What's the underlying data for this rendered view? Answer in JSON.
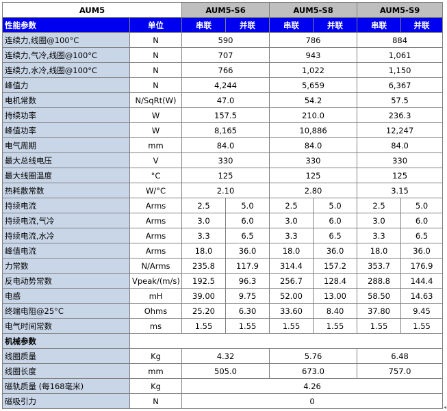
{
  "header": {
    "product": "AUM5",
    "models": [
      "AUM5-S6",
      "AUM5-S8",
      "AUM5-S9"
    ],
    "param_label": "性能参数",
    "unit_label": "单位",
    "series_label": "串联",
    "parallel_label": "并联"
  },
  "merged_rows": [
    {
      "label": "连续力,线圈@100°C",
      "unit": "N",
      "values": [
        "590",
        "786",
        "884"
      ]
    },
    {
      "label": "连续力,气冷,线圈@100°C",
      "unit": "N",
      "values": [
        "707",
        "943",
        "1,061"
      ]
    },
    {
      "label": "连续力,水冷,线圈@100°C",
      "unit": "N",
      "values": [
        "766",
        "1,022",
        "1,150"
      ]
    },
    {
      "label": "峰值力",
      "unit": "N",
      "values": [
        "4,244",
        "5,659",
        "6,367"
      ]
    },
    {
      "label": "电机常数",
      "unit": "N/SqRt(W)",
      "values": [
        "47.0",
        "54.2",
        "57.5"
      ]
    },
    {
      "label": "持续功率",
      "unit": "W",
      "values": [
        "157.5",
        "210.0",
        "236.3"
      ]
    },
    {
      "label": "峰值功率",
      "unit": "W",
      "values": [
        "8,165",
        "10,886",
        "12,247"
      ]
    },
    {
      "label": "电气周期",
      "unit": "mm",
      "values": [
        "84.0",
        "84.0",
        "84.0"
      ]
    },
    {
      "label": "最大总线电压",
      "unit": "V",
      "values": [
        "330",
        "330",
        "330"
      ]
    },
    {
      "label": "最大线圈温度",
      "unit": "°C",
      "values": [
        "125",
        "125",
        "125"
      ]
    },
    {
      "label": "热耗散常数",
      "unit": "W/°C",
      "values": [
        "2.10",
        "2.80",
        "3.15"
      ]
    }
  ],
  "split_rows": [
    {
      "label": "持续电流",
      "unit": "Arms",
      "values": [
        "2.5",
        "5.0",
        "2.5",
        "5.0",
        "2.5",
        "5.0"
      ]
    },
    {
      "label": "持续电流,气冷",
      "unit": "Arms",
      "values": [
        "3.0",
        "6.0",
        "3.0",
        "6.0",
        "3.0",
        "6.0"
      ]
    },
    {
      "label": "持续电流,水冷",
      "unit": "Arms",
      "values": [
        "3.3",
        "6.5",
        "3.3",
        "6.5",
        "3.3",
        "6.5"
      ]
    },
    {
      "label": "峰值电流",
      "unit": "Arms",
      "values": [
        "18.0",
        "36.0",
        "18.0",
        "36.0",
        "18.0",
        "36.0"
      ]
    },
    {
      "label": "力常数",
      "unit": "N/Arms",
      "values": [
        "235.8",
        "117.9",
        "314.4",
        "157.2",
        "353.7",
        "176.9"
      ]
    },
    {
      "label": "反电动势常数",
      "unit": "Vpeak/(m/s)",
      "values": [
        "192.5",
        "96.3",
        "256.7",
        "128.4",
        "288.8",
        "144.4"
      ]
    },
    {
      "label": "电感",
      "unit": "mH",
      "values": [
        "39.00",
        "9.75",
        "52.00",
        "13.00",
        "58.50",
        "14.63"
      ]
    },
    {
      "label": "终端电阻@25°C",
      "unit": "Ohms",
      "values": [
        "25.20",
        "6.30",
        "33.60",
        "8.40",
        "37.80",
        "9.45"
      ]
    },
    {
      "label": "电气时间常数",
      "unit": "ms",
      "values": [
        "1.55",
        "1.55",
        "1.55",
        "1.55",
        "1.55",
        "1.55"
      ]
    }
  ],
  "mech_section_label": "机械参数",
  "mech_rows": [
    {
      "label": "线圈质量",
      "unit": "Kg",
      "values": [
        "4.32",
        "5.76",
        "6.48"
      ]
    },
    {
      "label": "线圈长度",
      "unit": "mm",
      "values": [
        "505.0",
        "673.0",
        "757.0"
      ]
    }
  ],
  "full_rows": [
    {
      "label": "磁轨质量 (每168毫米)",
      "unit": "Kg",
      "value": "4.26"
    },
    {
      "label": "磁吸引力",
      "unit": "N",
      "value": "0"
    }
  ],
  "edge_mark": "◂"
}
